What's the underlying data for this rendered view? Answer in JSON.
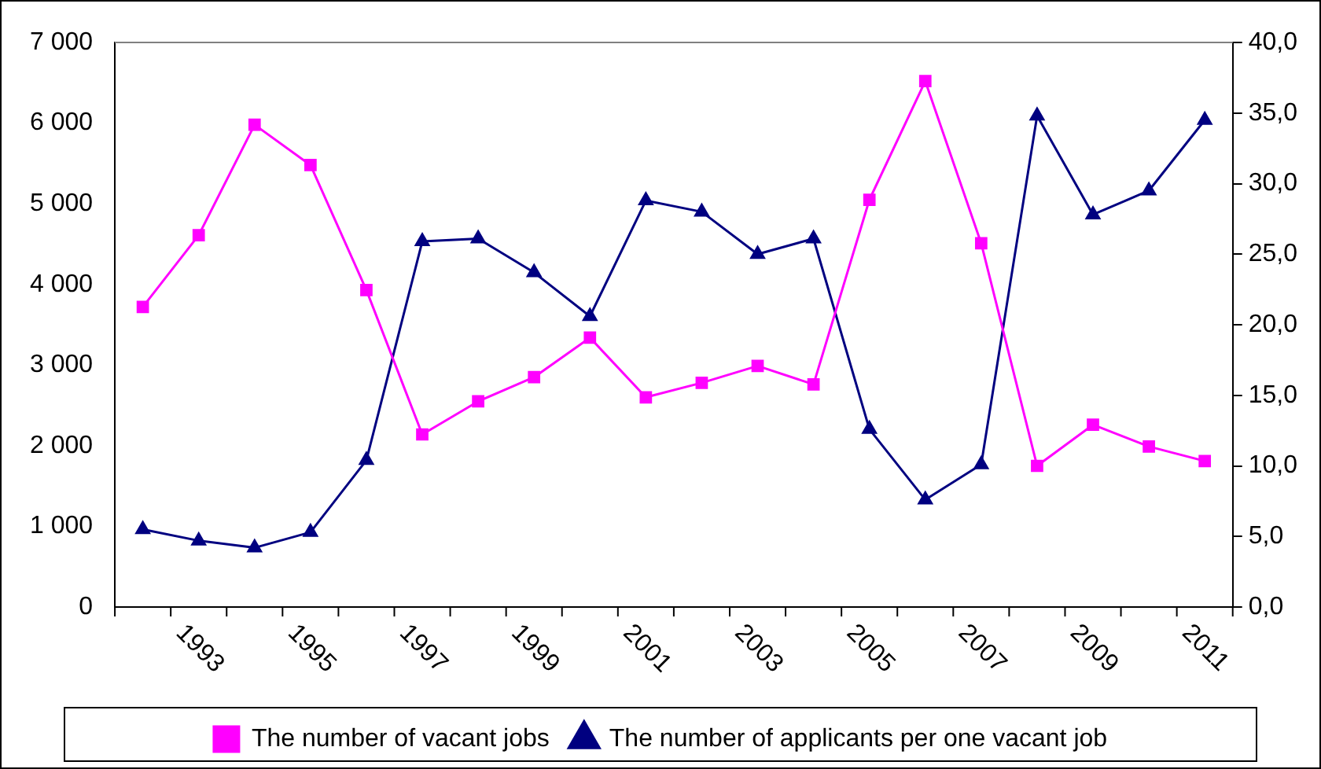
{
  "chart_data": {
    "type": "line",
    "categories": [
      null,
      "1993",
      null,
      "1995",
      null,
      "1997",
      null,
      "1999",
      null,
      "2001",
      null,
      "2003",
      null,
      "2005",
      null,
      "2007",
      null,
      "2009",
      null,
      "2011"
    ],
    "series": [
      {
        "name": "The number of vacant jobs",
        "color": "#ff00ff",
        "marker": "square",
        "values": [
          3720,
          4610,
          5980,
          5480,
          3930,
          2140,
          2550,
          2850,
          3340,
          2600,
          2780,
          2990,
          2760,
          5050,
          6520,
          4510,
          1750,
          2260,
          1990,
          1810
        ]
      },
      {
        "name": "The number of applicants per one vacant job",
        "color": "#000080",
        "marker": "triangle",
        "axis": "y2",
        "values": [
          5.5,
          4.7,
          4.2,
          5.3,
          10.4,
          25.9,
          26.1,
          23.7,
          20.6,
          28.8,
          28.0,
          25.0,
          26.1,
          12.6,
          7.6,
          10.1,
          34.8,
          27.8,
          29.5,
          34.5
        ]
      }
    ],
    "ylim": [
      0,
      7000
    ],
    "yticks": [
      0,
      {
        "value": 1000,
        "label": "1 000"
      },
      {
        "value": 2000,
        "label": "2 000"
      },
      {
        "value": 3000,
        "label": "3 000"
      },
      {
        "value": 4000,
        "label": "4 000"
      },
      {
        "value": 5000,
        "label": "5 000"
      },
      {
        "value": 6000,
        "label": "6 000"
      },
      {
        "value": 7000,
        "label": "7 000"
      }
    ],
    "y2lim": [
      0,
      40
    ],
    "y2ticks": [
      {
        "value": 0,
        "label": "0,0"
      },
      {
        "value": 5,
        "label": "5,0"
      },
      {
        "value": 10,
        "label": "10,0"
      },
      {
        "value": 15,
        "label": "15,0"
      },
      {
        "value": 20,
        "label": "20,0"
      },
      {
        "value": 25,
        "label": "25,0"
      },
      {
        "value": 30,
        "label": "30,0"
      },
      {
        "value": 35,
        "label": "35,0"
      },
      {
        "value": 40,
        "label": "40,0"
      }
    ],
    "grid": false,
    "legend": "bottom",
    "line_style": "solid"
  }
}
